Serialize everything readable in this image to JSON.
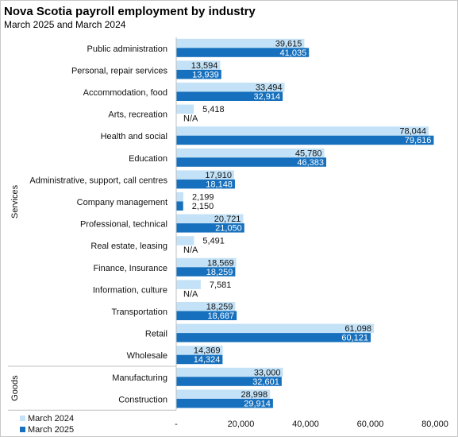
{
  "title": "Nova Scotia payroll employment by industry",
  "subtitle": "March 2025 and March 2024",
  "colors": {
    "march_2024": "#c3e2f7",
    "march_2025": "#1670bd"
  },
  "chart_data": {
    "type": "bar",
    "orientation": "horizontal",
    "title": "Nova Scotia payroll employment by industry",
    "subtitle": "March 2025 and March 2024",
    "categories": [
      "Public administration",
      "Personal, repair services",
      "Accommodation, food",
      "Arts, recreation",
      "Health and social",
      "Education",
      "Administrative, support, call centres",
      "Company management",
      "Professional, technical",
      "Real estate, leasing",
      "Finance, Insurance",
      "Information, culture",
      "Transportation",
      "Retail",
      "Wholesale",
      "Manufacturing",
      "Construction"
    ],
    "groups": [
      {
        "name": "Services",
        "count": 15
      },
      {
        "name": "Goods",
        "count": 2
      }
    ],
    "series": [
      {
        "name": "March 2024",
        "values": [
          39615,
          13594,
          33494,
          5418,
          78044,
          45780,
          17910,
          2199,
          20721,
          5491,
          18569,
          7581,
          18259,
          61098,
          14369,
          33000,
          28998
        ],
        "labels": [
          "39,615",
          "13,594",
          "33,494",
          "5,418",
          "78,044",
          "45,780",
          "17,910",
          "2,199",
          "20,721",
          "5,491",
          "18,569",
          "7,581",
          "18,259",
          "61,098",
          "14,369",
          "33,000",
          "28,998"
        ]
      },
      {
        "name": "March 2025",
        "values": [
          41035,
          13939,
          32914,
          null,
          79616,
          46383,
          18148,
          2150,
          21050,
          null,
          18259,
          null,
          18687,
          60121,
          14324,
          32601,
          29914
        ],
        "labels": [
          "41,035",
          "13,939",
          "32,914",
          "N/A",
          "79,616",
          "46,383",
          "18,148",
          "2,150",
          "21,050",
          "N/A",
          "18,259",
          "N/A",
          "18,687",
          "60,121",
          "14,324",
          "32,601",
          "29,914"
        ]
      }
    ],
    "xlim": [
      0,
      80000
    ],
    "xticks": [
      0,
      20000,
      40000,
      60000,
      80000
    ],
    "xtick_labels": [
      "-",
      "20,000",
      "40,000",
      "60,000",
      "80,000"
    ],
    "grid": false,
    "legend": "bottom-left"
  }
}
